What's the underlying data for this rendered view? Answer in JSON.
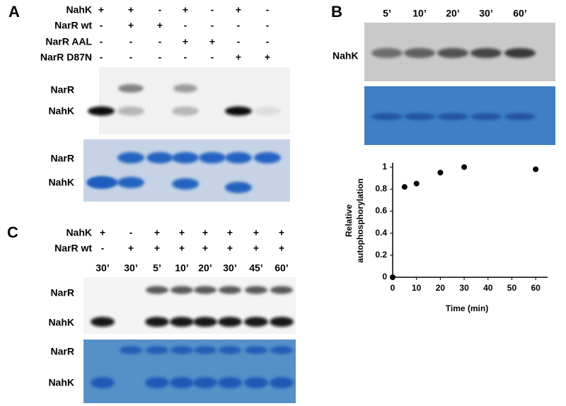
{
  "panel_a": {
    "letter": "A",
    "rows": [
      {
        "label": "NahK",
        "signs": [
          "+",
          "+",
          "-",
          "+",
          "-",
          "+",
          "-"
        ]
      },
      {
        "label": "NarR wt",
        "signs": [
          "-",
          "+",
          "+",
          "-",
          "-",
          "-",
          "-"
        ]
      },
      {
        "label": "NarR AAL",
        "signs": [
          "-",
          "-",
          "-",
          "+",
          "+",
          "-",
          "-"
        ]
      },
      {
        "label": "NarR D87N",
        "signs": [
          "-",
          "-",
          "-",
          "-",
          "-",
          "+",
          "+"
        ]
      }
    ],
    "gel_labels": [
      "NarR",
      "NahK"
    ],
    "stain_labels": [
      "NarR",
      "NahK"
    ]
  },
  "panel_b": {
    "letter": "B",
    "times": [
      "5’",
      "10’",
      "20’",
      "30’",
      "60’"
    ],
    "gel_label": "NahK"
  },
  "panel_c": {
    "letter": "C",
    "rows": [
      {
        "label": "NahK",
        "signs": [
          "+",
          "-",
          "+",
          "+",
          "+",
          "+",
          "+",
          "+"
        ]
      },
      {
        "label": "NarR wt",
        "signs": [
          "-",
          "+",
          "+",
          "+",
          "+",
          "+",
          "+",
          "+"
        ]
      }
    ],
    "times": [
      "30’",
      "30’",
      "5’",
      "10’",
      "20’",
      "30’",
      "45’",
      "60’"
    ],
    "gel_labels": [
      "NarR",
      "NahK"
    ],
    "stain_labels": [
      "NarR",
      "NahK"
    ]
  },
  "chart_data": {
    "type": "scatter",
    "xlabel": "Time (min)",
    "ylabel": [
      "Relative",
      "autophosphorylation"
    ],
    "x": [
      0,
      5,
      10,
      20,
      30,
      60
    ],
    "values": [
      0,
      0.82,
      0.85,
      0.95,
      1,
      0.98
    ],
    "color": "#000000",
    "xlim": [
      0,
      65
    ],
    "ylim": [
      0,
      1.04
    ],
    "xticks": [
      0,
      10,
      20,
      30,
      40,
      50,
      60
    ],
    "yticks": [
      0,
      0.2,
      0.4,
      0.6,
      0.8,
      1
    ]
  }
}
